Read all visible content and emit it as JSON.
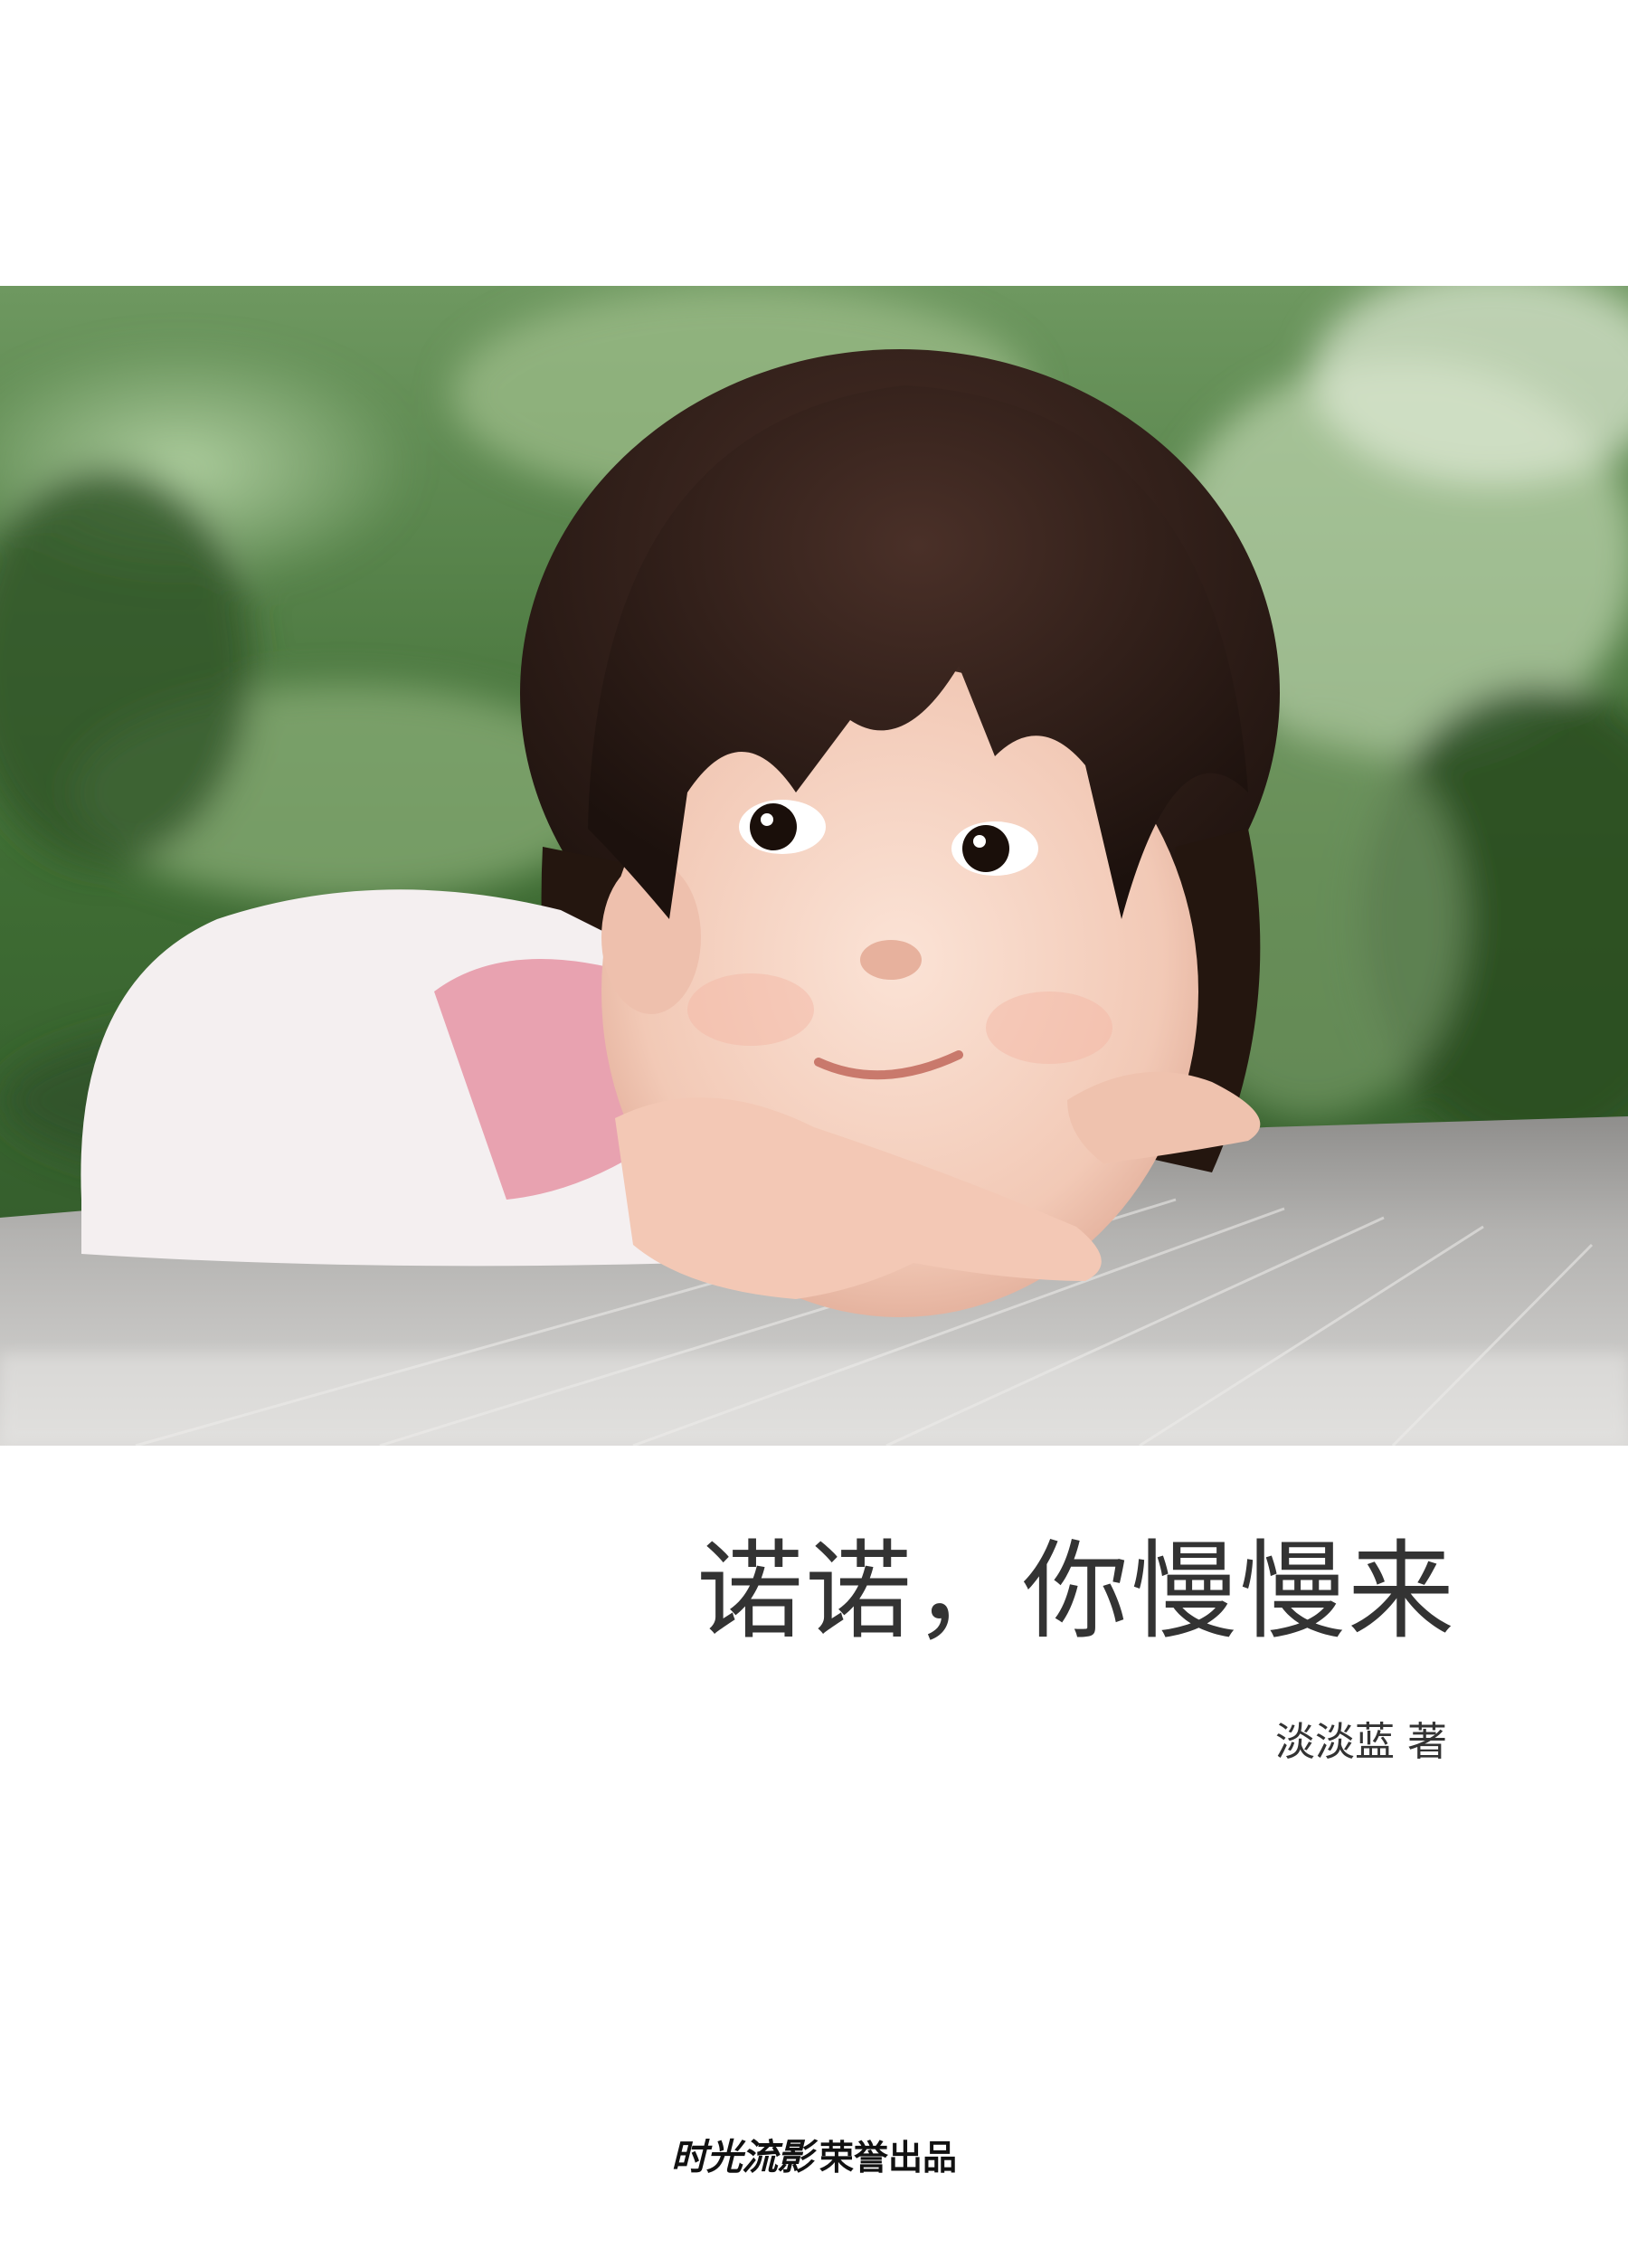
{
  "book": {
    "title": "诺诺，你慢慢来",
    "author_line": "淡淡蓝 著"
  },
  "publisher": {
    "logo_text": "时光流影",
    "credit": "荣誉出品"
  },
  "colors": {
    "text": "#333333",
    "foliage": "#4a7a3a",
    "hair": "#2a1a14",
    "sweater": "#f3eeef",
    "cuff": "#e8a2b0",
    "table": "#a9a8a6"
  }
}
